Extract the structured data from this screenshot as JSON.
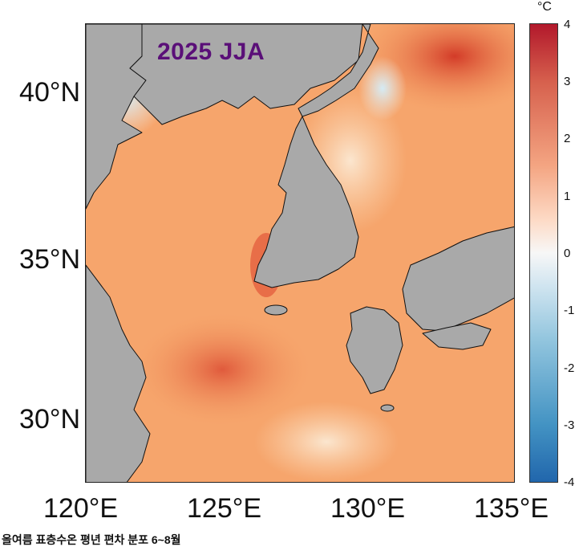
{
  "title": "2025 JJA",
  "lat_labels": [
    "40°N",
    "35°N",
    "30°N"
  ],
  "lon_labels": [
    "120°E",
    "125°E",
    "130°E",
    "135°E"
  ],
  "colorbar": {
    "unit": "°C",
    "ticks": [
      "4",
      "3",
      "2",
      "1",
      "0",
      "-1",
      "-2",
      "-3",
      "-4"
    ],
    "range": [
      -4,
      4
    ],
    "colors": [
      "#2166ac",
      "#4393c3",
      "#92c5de",
      "#d1e5f0",
      "#f7f7f7",
      "#fddbc7",
      "#f4a582",
      "#d6604d",
      "#b2182b"
    ]
  },
  "map": {
    "lon_range": [
      120,
      135
    ],
    "lat_range": [
      28,
      42
    ],
    "land_color": "#a9a9a9",
    "base_anomaly_color": "#f6a56c"
  },
  "caption": "올여름 표층수온 평년 편차 분포 6~8월"
}
